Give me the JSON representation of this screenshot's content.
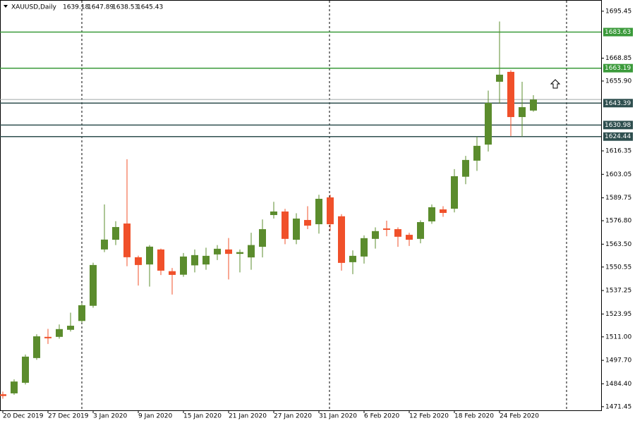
{
  "chart_data": {
    "type": "candlestick",
    "title": "XAUUSD,Daily",
    "categories": [
      "20 Dec 2019",
      null,
      null,
      null,
      "27 Dec 2019",
      null,
      null,
      null,
      "3 Jan 2020",
      null,
      null,
      null,
      "9 Jan 2020",
      null,
      null,
      null,
      "15 Jan 2020",
      null,
      null,
      null,
      "21 Jan 2020",
      null,
      null,
      null,
      "27 Jan 2020",
      null,
      null,
      null,
      "31 Jan 2020",
      null,
      null,
      null,
      "6 Feb 2020",
      null,
      null,
      null,
      "12 Feb 2020",
      null,
      null,
      null,
      "18 Feb 2020",
      null,
      null,
      null,
      "24 Feb 2020",
      null,
      null,
      null
    ],
    "open": [
      1478.5,
      1479.0,
      1485.0,
      1499.0,
      1511.0,
      1511.0,
      1515.0,
      1520.0,
      1528.6,
      1560.5,
      1566.0,
      1575.2,
      1556.1,
      1552.0,
      1560.5,
      1548.2,
      1546.2,
      1551.5,
      1552.0,
      1557.7,
      1560.5,
      1558.0,
      1556.0,
      1562.0,
      1580.0,
      1582.0,
      1566.0,
      1577.2,
      1574.8,
      1590.0,
      1579.3,
      1553.3,
      1556.5,
      1566.5,
      1572.4,
      1572.0,
      1568.8,
      1566.5,
      1576.4,
      1583.2,
      1583.6,
      1601.7,
      1610.8,
      1619.9,
      1655.5,
      1661.1,
      1635.5,
      1639.18
    ],
    "high": [
      1480.0,
      1486.9,
      1501.0,
      1512.5,
      1515.5,
      1518.0,
      1524.7,
      1530.0,
      1553.0,
      1586.0,
      1576.5,
      1611.6,
      1557.0,
      1563.0,
      1561.0,
      1550.0,
      1558.5,
      1560.5,
      1561.5,
      1563.0,
      1567.0,
      1560.5,
      1570.0,
      1577.5,
      1587.5,
      1583.5,
      1581.0,
      1585.0,
      1591.5,
      1591.5,
      1580.5,
      1560.0,
      1568.5,
      1573.0,
      1576.8,
      1573.0,
      1570.0,
      1577.0,
      1586.0,
      1585.0,
      1606.0,
      1613.5,
      1624.5,
      1650.5,
      1689.6,
      1662.0,
      1655.5,
      1647.89
    ],
    "low": [
      1476.0,
      1478.2,
      1484.0,
      1498.0,
      1507.0,
      1510.0,
      1514.0,
      1519.0,
      1527.5,
      1559.0,
      1563.0,
      1551.0,
      1540.1,
      1539.5,
      1546.0,
      1535.0,
      1545.0,
      1547.5,
      1549.0,
      1554.5,
      1543.5,
      1547.5,
      1549.0,
      1556.0,
      1578.0,
      1563.5,
      1563.5,
      1572.0,
      1569.5,
      1571.0,
      1548.5,
      1546.5,
      1552.5,
      1561.0,
      1568.0,
      1562.0,
      1562.5,
      1564.0,
      1575.0,
      1579.0,
      1581.5,
      1597.5,
      1605.0,
      1616.0,
      1643.0,
      1624.8,
      1624.5,
      1638.53
    ],
    "close": [
      1477.5,
      1485.7,
      1499.8,
      1511.3,
      1510.2,
      1515.4,
      1517.3,
      1528.9,
      1551.7,
      1566.1,
      1573.2,
      1556.1,
      1551.7,
      1562.1,
      1548.5,
      1546.1,
      1556.5,
      1557.3,
      1556.9,
      1560.9,
      1558.0,
      1559.0,
      1563.0,
      1572.0,
      1582.0,
      1566.5,
      1578.0,
      1574.0,
      1589.2,
      1574.8,
      1552.9,
      1556.9,
      1566.9,
      1570.9,
      1571.6,
      1567.7,
      1566.0,
      1576.0,
      1584.4,
      1581.2,
      1602.0,
      1611.2,
      1619.2,
      1643.5,
      1659.5,
      1635.5,
      1641.1,
      1645.43
    ],
    "up_color": "#5b8c2d",
    "down_color": "#f0502a",
    "ylim": [
      1469.0,
      1701.8
    ],
    "yticks": [
      1695.45,
      1668.85,
      {
        "value": 1655.9,
        "label": "1655.90"
      },
      1616.35,
      1603.05,
      1589.75,
      {
        "value": 1576.8,
        "label": "1576.80"
      },
      {
        "value": 1563.5,
        "label": "1563.50"
      },
      1550.55,
      1537.25,
      1523.95,
      {
        "value": 1511.0,
        "label": "1511.00"
      },
      {
        "value": 1497.7,
        "label": "1497.70"
      },
      {
        "value": 1484.4,
        "label": "1484.40"
      },
      1471.45
    ],
    "hlines": [
      {
        "value": 1683.63,
        "color": "#3a9a3a"
      },
      {
        "value": 1663.19,
        "color": "#3a9a3a"
      },
      {
        "value": 1643.39,
        "color": "#2f4f4f"
      },
      {
        "value": 1630.98,
        "color": "#2f4f4f"
      },
      {
        "value": 1624.44,
        "color": "#2f4f4f"
      }
    ]
  }
}
